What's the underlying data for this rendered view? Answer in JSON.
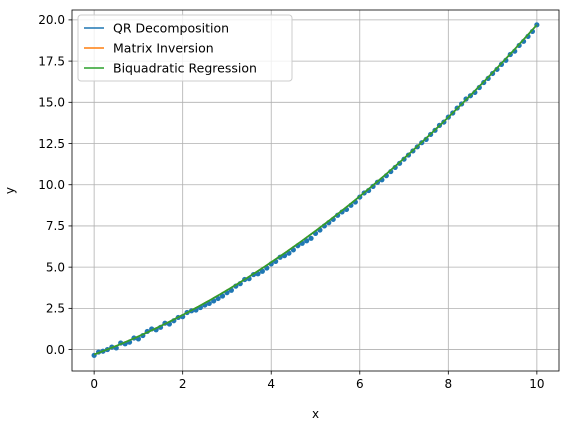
{
  "chart_data": {
    "type": "line",
    "xlabel": "x",
    "ylabel": "y",
    "xlim": [
      -0.5,
      10.5
    ],
    "ylim": [
      -1.3,
      20.6
    ],
    "xticks": [
      0,
      2,
      4,
      6,
      8,
      10
    ],
    "xtick_labels": [
      "0",
      "2",
      "4",
      "6",
      "8",
      "10"
    ],
    "yticks": [
      0,
      2.5,
      5,
      7.5,
      10,
      12.5,
      15,
      17.5,
      20
    ],
    "ytick_labels": [
      "0.0",
      "2.5",
      "5.0",
      "7.5",
      "10.0",
      "12.5",
      "15.0",
      "17.5",
      "20.0"
    ],
    "grid": true,
    "legend_position": "top-left",
    "scatter": {
      "color": "#1f77b4",
      "x": [
        0.0,
        0.1,
        0.2,
        0.3,
        0.4,
        0.5,
        0.6,
        0.7,
        0.8,
        0.9,
        1.0,
        1.1,
        1.2,
        1.3,
        1.4,
        1.5,
        1.6,
        1.7,
        1.8,
        1.9,
        2.0,
        2.1,
        2.2,
        2.3,
        2.4,
        2.5,
        2.6,
        2.7,
        2.8,
        2.9,
        3.0,
        3.1,
        3.2,
        3.3,
        3.4,
        3.5,
        3.6,
        3.7,
        3.8,
        3.9,
        4.0,
        4.1,
        4.2,
        4.3,
        4.4,
        4.5,
        4.6,
        4.7,
        4.8,
        4.9,
        5.0,
        5.1,
        5.2,
        5.3,
        5.4,
        5.5,
        5.6,
        5.7,
        5.8,
        5.9,
        6.0,
        6.1,
        6.2,
        6.3,
        6.4,
        6.5,
        6.6,
        6.7,
        6.8,
        6.9,
        7.0,
        7.1,
        7.2,
        7.3,
        7.4,
        7.5,
        7.6,
        7.7,
        7.8,
        7.9,
        8.0,
        8.1,
        8.2,
        8.3,
        8.4,
        8.5,
        8.6,
        8.7,
        8.8,
        8.9,
        9.0,
        9.1,
        9.2,
        9.3,
        9.4,
        9.5,
        9.6,
        9.7,
        9.8,
        9.9,
        10.0
      ],
      "y": [
        -0.35,
        -0.15,
        -0.1,
        0.0,
        0.15,
        0.1,
        0.4,
        0.35,
        0.45,
        0.7,
        0.65,
        0.85,
        1.1,
        1.25,
        1.2,
        1.35,
        1.6,
        1.55,
        1.75,
        1.95,
        2.0,
        2.25,
        2.35,
        2.4,
        2.55,
        2.7,
        2.8,
        2.95,
        3.1,
        3.25,
        3.45,
        3.6,
        3.85,
        4.0,
        4.25,
        4.3,
        4.55,
        4.6,
        4.75,
        4.95,
        5.2,
        5.35,
        5.6,
        5.7,
        5.85,
        6.05,
        6.3,
        6.45,
        6.6,
        6.75,
        7.05,
        7.25,
        7.5,
        7.7,
        7.9,
        8.15,
        8.35,
        8.5,
        8.75,
        8.95,
        9.25,
        9.5,
        9.65,
        9.9,
        10.15,
        10.3,
        10.55,
        10.8,
        11.05,
        11.3,
        11.55,
        11.8,
        12.05,
        12.3,
        12.55,
        12.75,
        13.05,
        13.3,
        13.6,
        13.8,
        14.1,
        14.35,
        14.65,
        14.9,
        15.2,
        15.4,
        15.6,
        15.9,
        16.2,
        16.45,
        16.75,
        17.0,
        17.3,
        17.55,
        17.9,
        18.1,
        18.45,
        18.7,
        19.0,
        19.3,
        19.7
      ]
    },
    "series": [
      {
        "name": "QR Decomposition",
        "color": "#1f77b4",
        "coefficients": [
          -0.3,
          1.0,
          0.1,
          0.0,
          0.0
        ]
      },
      {
        "name": "Matrix Inversion",
        "color": "#ff7f0e",
        "coefficients": [
          -0.3,
          1.0,
          0.1,
          0.0,
          0.0
        ]
      },
      {
        "name": "Biquadratic Regression",
        "color": "#2ca02c",
        "coefficients": [
          -0.3,
          1.0,
          0.1,
          0.0,
          0.0
        ]
      }
    ]
  }
}
